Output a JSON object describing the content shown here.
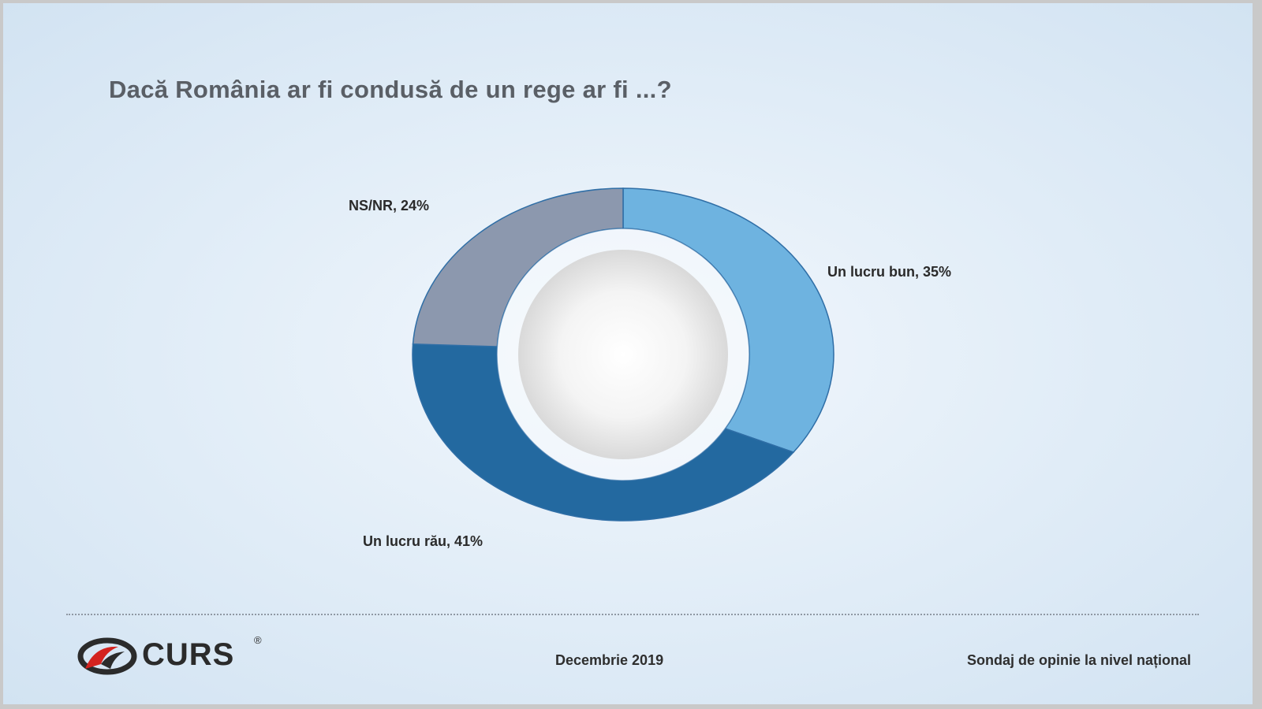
{
  "slide": {
    "title": "Dacă România ar fi condusă de un rege ar fi ...?",
    "footer": {
      "logo_text": "CURS",
      "logo_reg": "®",
      "date": "Decembrie 2019",
      "survey": "Sondaj de opinie la nivel național"
    }
  },
  "chart_data": {
    "type": "pie",
    "variant": "donut",
    "title": "Dacă România ar fi condusă de un rege ar fi ...?",
    "slices": [
      {
        "label": "Un lucru bun, 35%",
        "value": 35,
        "color": "#6eb3e0"
      },
      {
        "label": "Un lucru rău, 41%",
        "value": 41,
        "color": "#2369a0"
      },
      {
        "label": "NS/NR, 24%",
        "value": 24,
        "color": "#8c98ae"
      }
    ],
    "start_angle": "12 o'clock",
    "direction": "clockwise",
    "legend": "none"
  }
}
